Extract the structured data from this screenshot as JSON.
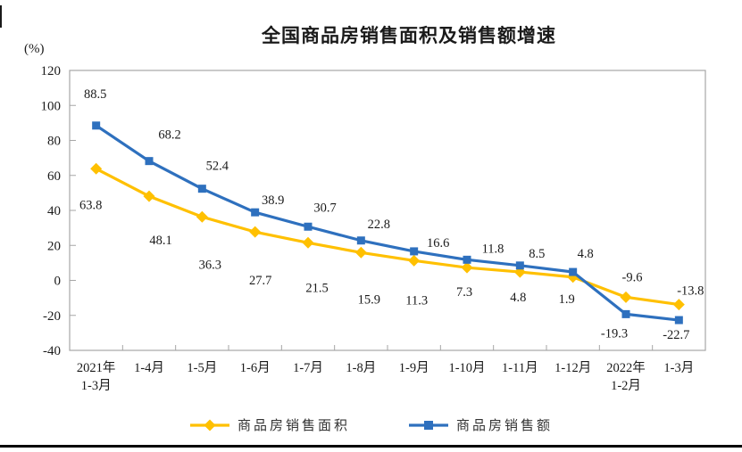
{
  "page": {
    "bottom_rule_color": "#000000"
  },
  "chart_data": {
    "type": "line",
    "title": "全国商品房销售面积及销售额增速",
    "unit": "(%)",
    "xlabel": "",
    "ylabel": "(%)",
    "ylim": [
      -40,
      120
    ],
    "ytick_step": 20,
    "yticks": [
      120,
      100,
      80,
      60,
      40,
      20,
      0,
      -20,
      -40
    ],
    "grid": false,
    "legend_position": "bottom-center",
    "categories": [
      "2021年1-3月",
      "1-4月",
      "1-5月",
      "1-6月",
      "1-7月",
      "1-8月",
      "1-9月",
      "1-10月",
      "1-11月",
      "1-12月",
      "2022年1-2月",
      "1-3月"
    ],
    "category_lines": [
      [
        "2021年",
        "1-3月"
      ],
      [
        "1-4月"
      ],
      [
        "1-5月"
      ],
      [
        "1-6月"
      ],
      [
        "1-7月"
      ],
      [
        "1-8月"
      ],
      [
        "1-9月"
      ],
      [
        "1-10月"
      ],
      [
        "1-11月"
      ],
      [
        "1-12月"
      ],
      [
        "2022年",
        "1-2月"
      ],
      [
        "1-3月"
      ]
    ],
    "series": [
      {
        "name": "商品房销售面积",
        "color": "#FFC000",
        "marker": "diamond",
        "values": [
          63.8,
          48.1,
          36.3,
          27.7,
          21.5,
          15.9,
          11.3,
          7.3,
          4.8,
          1.9,
          -9.6,
          -13.8
        ]
      },
      {
        "name": "商品房销售额",
        "color": "#2E70BE",
        "marker": "square",
        "values": [
          88.5,
          68.2,
          52.4,
          38.9,
          30.7,
          22.8,
          16.6,
          11.8,
          8.5,
          4.8,
          -19.3,
          -22.7
        ]
      }
    ],
    "axis_color": "#A6A6A6",
    "label_color": "#1a1a1a"
  }
}
